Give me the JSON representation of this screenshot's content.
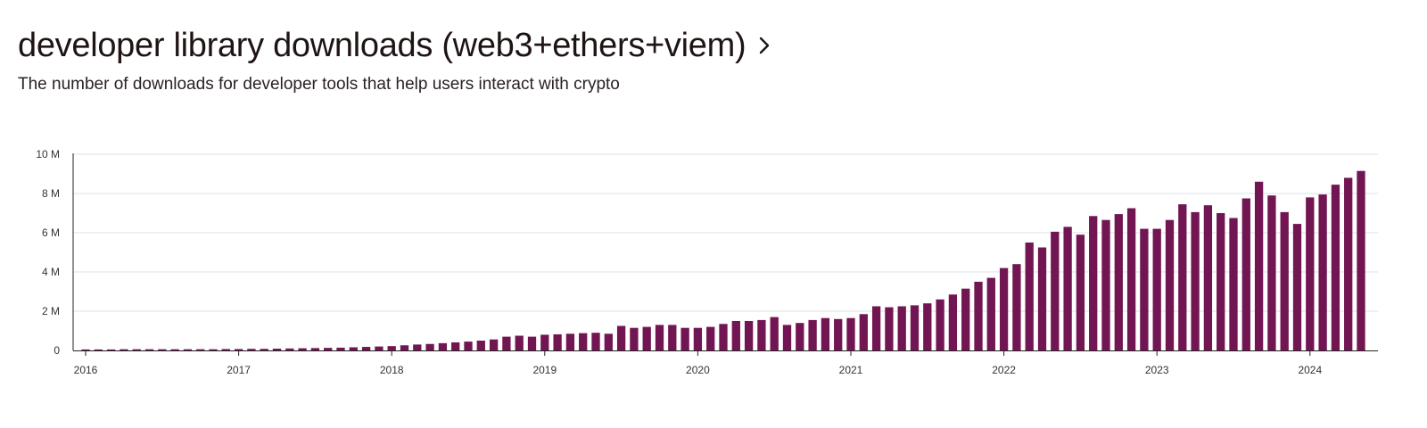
{
  "header": {
    "title": "developer library downloads (web3+ethers+viem)",
    "subtitle": "The number of downloads for developer tools that help users interact with crypto",
    "chevron_icon": "chevron-right-icon"
  },
  "colors": {
    "bar": "#721653",
    "grid": "#dde1e6",
    "axis": "#222222"
  },
  "chart_data": {
    "type": "bar",
    "title": "developer library downloads (web3+ethers+viem)",
    "subtitle": "The number of downloads for developer tools that help users interact with crypto",
    "xlabel": "",
    "ylabel": "",
    "ylim": [
      0,
      10000000
    ],
    "y_ticks": [
      {
        "value": 0,
        "label": "0"
      },
      {
        "value": 2000000,
        "label": "2 M"
      },
      {
        "value": 4000000,
        "label": "4 M"
      },
      {
        "value": 6000000,
        "label": "6 M"
      },
      {
        "value": 8000000,
        "label": "8 M"
      },
      {
        "value": 10000000,
        "label": "10 M"
      }
    ],
    "x_ticks": [
      {
        "label": "2016",
        "index": 0
      },
      {
        "label": "2017",
        "index": 12
      },
      {
        "label": "2018",
        "index": 24
      },
      {
        "label": "2019",
        "index": 36
      },
      {
        "label": "2020",
        "index": 48
      },
      {
        "label": "2021",
        "index": 60
      },
      {
        "label": "2022",
        "index": 72
      },
      {
        "label": "2023",
        "index": 84
      },
      {
        "label": "2024",
        "index": 96
      }
    ],
    "grid": true,
    "legend": "none",
    "categories": [
      "2016-01",
      "2016-02",
      "2016-03",
      "2016-04",
      "2016-05",
      "2016-06",
      "2016-07",
      "2016-08",
      "2016-09",
      "2016-10",
      "2016-11",
      "2016-12",
      "2017-01",
      "2017-02",
      "2017-03",
      "2017-04",
      "2017-05",
      "2017-06",
      "2017-07",
      "2017-08",
      "2017-09",
      "2017-10",
      "2017-11",
      "2017-12",
      "2018-01",
      "2018-02",
      "2018-03",
      "2018-04",
      "2018-05",
      "2018-06",
      "2018-07",
      "2018-08",
      "2018-09",
      "2018-10",
      "2018-11",
      "2018-12",
      "2019-01",
      "2019-02",
      "2019-03",
      "2019-04",
      "2019-05",
      "2019-06",
      "2019-07",
      "2019-08",
      "2019-09",
      "2019-10",
      "2019-11",
      "2019-12",
      "2020-01",
      "2020-02",
      "2020-03",
      "2020-04",
      "2020-05",
      "2020-06",
      "2020-07",
      "2020-08",
      "2020-09",
      "2020-10",
      "2020-11",
      "2020-12",
      "2021-01",
      "2021-02",
      "2021-03",
      "2021-04",
      "2021-05",
      "2021-06",
      "2021-07",
      "2021-08",
      "2021-09",
      "2021-10",
      "2021-11",
      "2021-12",
      "2022-01",
      "2022-02",
      "2022-03",
      "2022-04",
      "2022-05",
      "2022-06",
      "2022-07",
      "2022-08",
      "2022-09",
      "2022-10",
      "2022-11",
      "2022-12",
      "2023-01",
      "2023-02",
      "2023-03",
      "2023-04",
      "2023-05",
      "2023-06",
      "2023-07",
      "2023-08",
      "2023-09",
      "2023-10",
      "2023-11",
      "2023-12",
      "2024-01",
      "2024-02",
      "2024-03",
      "2024-04",
      "2024-05"
    ],
    "values": [
      50000,
      50000,
      50000,
      60000,
      60000,
      60000,
      60000,
      60000,
      60000,
      60000,
      60000,
      70000,
      70000,
      80000,
      80000,
      90000,
      100000,
      110000,
      120000,
      130000,
      140000,
      160000,
      180000,
      200000,
      220000,
      260000,
      300000,
      330000,
      370000,
      410000,
      450000,
      500000,
      560000,
      700000,
      750000,
      700000,
      800000,
      820000,
      850000,
      880000,
      900000,
      850000,
      1250000,
      1150000,
      1200000,
      1300000,
      1300000,
      1150000,
      1150000,
      1200000,
      1350000,
      1500000,
      1500000,
      1550000,
      1700000,
      1300000,
      1400000,
      1550000,
      1650000,
      1600000,
      1650000,
      1850000,
      2250000,
      2200000,
      2250000,
      2300000,
      2400000,
      2600000,
      2850000,
      3150000,
      3500000,
      3700000,
      4200000,
      4400000,
      5500000,
      5250000,
      6050000,
      6300000,
      5900000,
      6850000,
      6650000,
      6950000,
      7250000,
      6200000,
      6200000,
      6650000,
      7450000,
      7050000,
      7400000,
      7000000,
      6750000,
      7750000,
      8600000,
      7900000,
      7050000,
      6450000,
      7800000,
      7950000,
      8450000,
      8800000,
      9150000
    ]
  }
}
